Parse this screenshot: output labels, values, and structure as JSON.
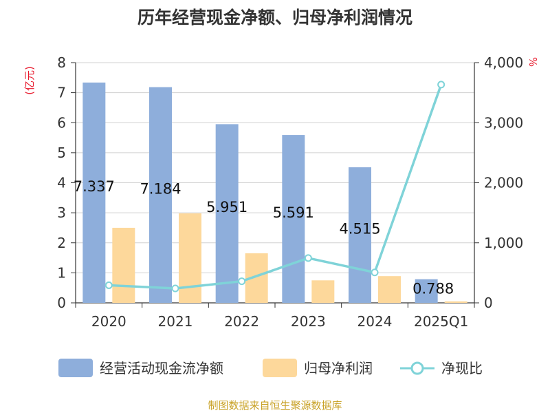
{
  "chart_data": {
    "type": "bar",
    "title": "历年经营现金净额、归母净利润情况",
    "categories": [
      "2020",
      "2021",
      "2022",
      "2023",
      "2024",
      "2025Q1"
    ],
    "left_axis": {
      "unit": "(亿元)",
      "ylim": [
        0,
        8
      ],
      "ticks": [
        "0",
        "1",
        "2",
        "3",
        "4",
        "5",
        "6",
        "7",
        "8"
      ]
    },
    "right_axis": {
      "unit": "%",
      "ylim": [
        0,
        4000
      ],
      "ticks": [
        "0",
        "1,000",
        "2,000",
        "3,000",
        "4,000"
      ]
    },
    "series": [
      {
        "name": "经营活动现金流净额",
        "kind": "bar",
        "axis": "left",
        "color": "#8eaedb",
        "values": [
          7.337,
          7.184,
          5.951,
          5.591,
          4.515,
          0.788
        ],
        "labels": [
          "7.337",
          "7.184",
          "5.951",
          "5.591",
          "4.515",
          "0.788"
        ]
      },
      {
        "name": "归母净利润",
        "kind": "bar",
        "axis": "left",
        "color": "#fdd89b",
        "values": [
          2.5,
          2.98,
          1.65,
          0.75,
          0.89,
          0.05
        ]
      },
      {
        "name": "净现比",
        "kind": "line",
        "axis": "right",
        "color": "#7fd3d8",
        "values": [
          293,
          241,
          360,
          746,
          507,
          3634
        ]
      }
    ],
    "grid": true,
    "legend": "bottom",
    "source": "制图数据来自恒生聚源数据库"
  }
}
